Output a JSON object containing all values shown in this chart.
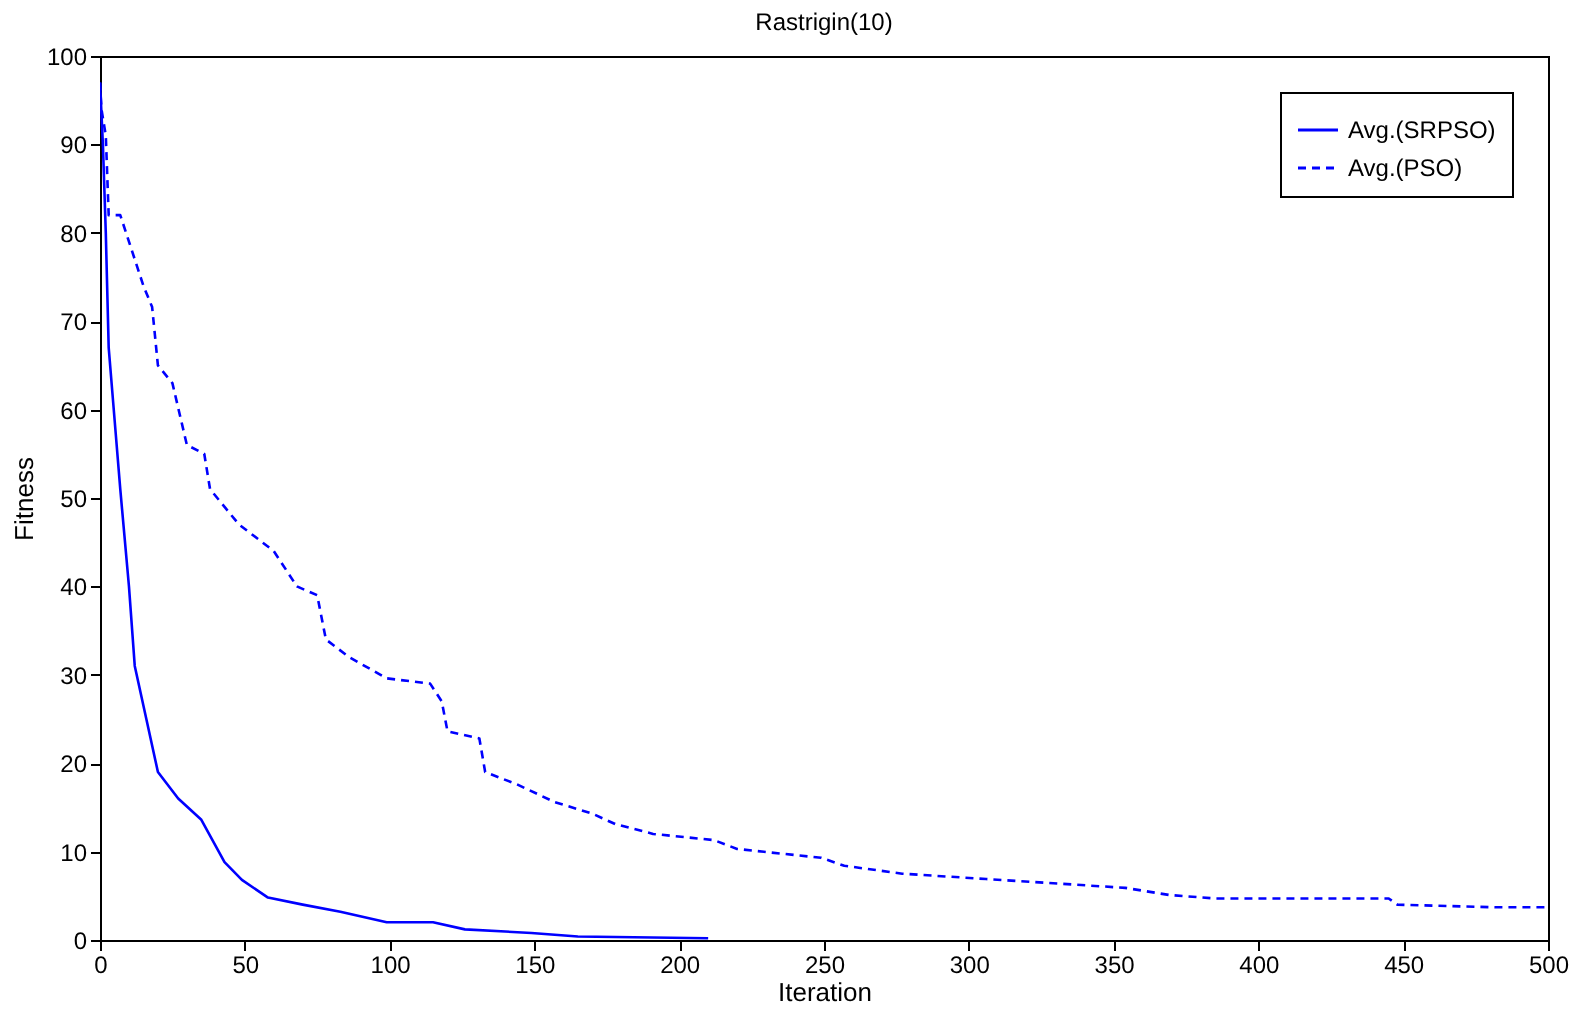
{
  "chart_data": {
    "type": "line",
    "title": "Rastrigin(10)",
    "xlabel": "Iteration",
    "ylabel": "Fitness",
    "xlim": [
      0,
      500
    ],
    "xticks": [
      0,
      50,
      100,
      150,
      200,
      250,
      300,
      350,
      400,
      450,
      500
    ],
    "ylim": [
      0,
      100
    ],
    "yticks": [
      0,
      10,
      20,
      30,
      40,
      50,
      60,
      70,
      80,
      90,
      100
    ],
    "grid": false,
    "legend": "top right",
    "marker": "none",
    "series": [
      {
        "name": "Avg.(SRPSO)",
        "color": "#0000ff",
        "line_style": "solid",
        "x": [
          0,
          1,
          2,
          3,
          4.5,
          7,
          10,
          12,
          16,
          20,
          27,
          35,
          43,
          49,
          58,
          70,
          83,
          99,
          115,
          126,
          149,
          165,
          210
        ],
        "values": [
          97,
          90,
          80,
          67,
          61,
          51,
          40,
          31,
          25,
          19,
          16,
          13.6,
          8.8,
          6.8,
          4.8,
          4,
          3.2,
          2,
          2,
          1.2,
          0.8,
          0.4,
          0.2
        ]
      },
      {
        "name": "Avg.(PSO)",
        "color": "#0000ff",
        "line_style": "dashed",
        "x": [
          0,
          0.5,
          2,
          3,
          7,
          15,
          18,
          20,
          25,
          30,
          36,
          38,
          48,
          60,
          68,
          75,
          78,
          86,
          99,
          114,
          118,
          120,
          131,
          133,
          144,
          157,
          170,
          178,
          191,
          212,
          220,
          249,
          257,
          277,
          306,
          354,
          369,
          385,
          445,
          448,
          482,
          500
        ],
        "values": [
          97,
          94,
          91,
          82,
          82,
          74,
          71.6,
          65,
          63,
          56,
          55,
          51,
          47,
          44,
          40,
          39,
          34,
          32,
          29.6,
          29,
          27,
          23.6,
          22.8,
          19,
          17.6,
          15.6,
          14.3,
          13.1,
          12,
          11.3,
          10.3,
          9.3,
          8.4,
          7.5,
          6.9,
          5.9,
          5.1,
          4.7,
          4.7,
          4,
          3.7,
          3.7
        ]
      }
    ]
  }
}
